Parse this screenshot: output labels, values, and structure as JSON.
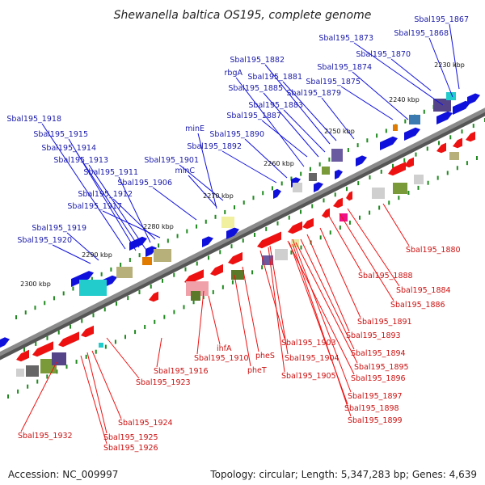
{
  "title": "Shewanella baltica OS195, complete genome",
  "footer": {
    "accession": "Accession: NC_009997",
    "topology": "Topology: circular; Length: 5,347,283 bp; Genes: 4,639"
  },
  "colors": {
    "forward": "#1010dd",
    "reverse": "#ee1111",
    "backbone": "#8a8a8a",
    "tick": "#1f8a1f"
  },
  "kbp_labels": [
    "2230 kbp",
    "2240 kbp",
    "2250 kbp",
    "2260 kbp",
    "2270 kbp",
    "2280 kbp",
    "2290 kbp",
    "2300 kbp"
  ],
  "forward_labels": [
    "Sbal195_1867",
    "Sbal195_1868",
    "Sbal195_1873",
    "Sbal195_1870",
    "Sbal195_1882",
    "Sbal195_1874",
    "rbgA",
    "Sbal195_1881",
    "Sbal195_1875",
    "Sbal195_1885",
    "Sbal195_1879",
    "Sbal195_1883",
    "Sbal195_1887",
    "Sbal195_1918",
    "minE",
    "Sbal195_1890",
    "Sbal195_1915",
    "Sbal195_1892",
    "Sbal195_1914",
    "Sbal195_1901",
    "Sbal195_1913",
    "minC",
    "Sbal195_1911",
    "Sbal195_1906",
    "Sbal195_1912",
    "Sbal195_1917",
    "Sbal195_1919",
    "Sbal195_1920"
  ],
  "reverse_labels": [
    "Sbal195_1880",
    "Sbal195_1888",
    "Sbal195_1884",
    "Sbal195_1886",
    "Sbal195_1891",
    "Sbal195_1893",
    "Sbal195_1903",
    "Sbal195_1894",
    "ihfA",
    "Sbal195_1904",
    "Sbal195_1910",
    "pheS",
    "Sbal195_1895",
    "Sbal195_1916",
    "pheT",
    "Sbal195_1896",
    "Sbal195_1905",
    "Sbal195_1923",
    "Sbal195_1897",
    "Sbal195_1898",
    "Sbal195_1899",
    "Sbal195_1924",
    "Sbal195_1932",
    "Sbal195_1925",
    "Sbal195_1926"
  ]
}
